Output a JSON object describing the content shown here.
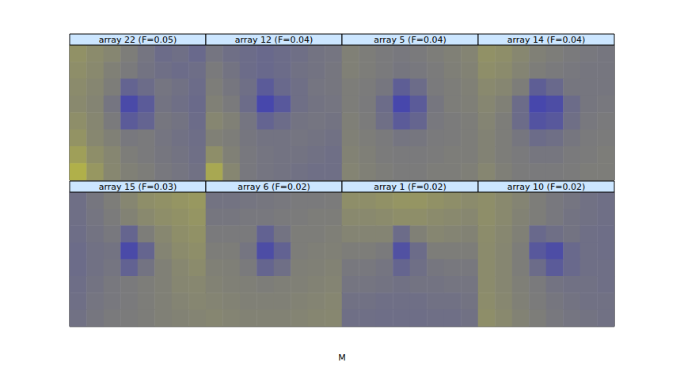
{
  "chart_data": {
    "type": "heatmap",
    "xlabel": "M",
    "tick_labels": false,
    "color_range": [
      0,
      1
    ],
    "colors": [
      "#2828c8",
      "#d2d22a"
    ],
    "panels": [
      {
        "title": "array 22 (F=0.05)",
        "cells": [
          [
            0.62,
            0.58,
            0.55,
            0.5,
            0.45,
            0.4,
            0.42,
            0.38
          ],
          [
            0.6,
            0.57,
            0.52,
            0.48,
            0.44,
            0.42,
            0.4,
            0.41
          ],
          [
            0.58,
            0.55,
            0.5,
            0.35,
            0.4,
            0.45,
            0.43,
            0.4
          ],
          [
            0.57,
            0.54,
            0.45,
            0.2,
            0.3,
            0.44,
            0.42,
            0.39
          ],
          [
            0.6,
            0.55,
            0.48,
            0.3,
            0.35,
            0.46,
            0.44,
            0.4
          ],
          [
            0.63,
            0.56,
            0.52,
            0.47,
            0.48,
            0.45,
            0.43,
            0.41
          ],
          [
            0.7,
            0.6,
            0.55,
            0.5,
            0.48,
            0.46,
            0.44,
            0.42
          ],
          [
            0.8,
            0.65,
            0.56,
            0.52,
            0.5,
            0.47,
            0.45,
            0.43
          ]
        ]
      },
      {
        "title": "array 12 (F=0.04)",
        "cells": [
          [
            0.45,
            0.42,
            0.4,
            0.38,
            0.4,
            0.42,
            0.44,
            0.45
          ],
          [
            0.48,
            0.44,
            0.4,
            0.38,
            0.4,
            0.43,
            0.44,
            0.46
          ],
          [
            0.5,
            0.46,
            0.42,
            0.3,
            0.38,
            0.42,
            0.45,
            0.46
          ],
          [
            0.52,
            0.48,
            0.4,
            0.18,
            0.28,
            0.42,
            0.44,
            0.45
          ],
          [
            0.55,
            0.52,
            0.45,
            0.35,
            0.4,
            0.44,
            0.45,
            0.44
          ],
          [
            0.52,
            0.5,
            0.46,
            0.44,
            0.44,
            0.45,
            0.44,
            0.43
          ],
          [
            0.6,
            0.52,
            0.47,
            0.45,
            0.44,
            0.44,
            0.43,
            0.42
          ],
          [
            0.75,
            0.55,
            0.47,
            0.45,
            0.44,
            0.43,
            0.42,
            0.42
          ]
        ]
      },
      {
        "title": "array 5 (F=0.04)",
        "cells": [
          [
            0.52,
            0.5,
            0.48,
            0.47,
            0.48,
            0.5,
            0.52,
            0.54
          ],
          [
            0.52,
            0.5,
            0.48,
            0.46,
            0.47,
            0.49,
            0.51,
            0.53
          ],
          [
            0.5,
            0.49,
            0.46,
            0.32,
            0.4,
            0.48,
            0.5,
            0.52
          ],
          [
            0.5,
            0.48,
            0.4,
            0.18,
            0.3,
            0.46,
            0.5,
            0.51
          ],
          [
            0.51,
            0.49,
            0.42,
            0.3,
            0.36,
            0.47,
            0.49,
            0.5
          ],
          [
            0.52,
            0.5,
            0.48,
            0.45,
            0.46,
            0.48,
            0.49,
            0.5
          ],
          [
            0.53,
            0.51,
            0.49,
            0.48,
            0.48,
            0.49,
            0.5,
            0.5
          ],
          [
            0.54,
            0.52,
            0.5,
            0.49,
            0.49,
            0.5,
            0.5,
            0.51
          ]
        ]
      },
      {
        "title": "array 14 (F=0.04)",
        "cells": [
          [
            0.62,
            0.6,
            0.56,
            0.52,
            0.5,
            0.48,
            0.47,
            0.46
          ],
          [
            0.6,
            0.58,
            0.54,
            0.5,
            0.48,
            0.47,
            0.46,
            0.46
          ],
          [
            0.57,
            0.55,
            0.5,
            0.32,
            0.38,
            0.46,
            0.46,
            0.46
          ],
          [
            0.55,
            0.52,
            0.4,
            0.18,
            0.22,
            0.4,
            0.46,
            0.47
          ],
          [
            0.54,
            0.5,
            0.4,
            0.25,
            0.28,
            0.42,
            0.47,
            0.48
          ],
          [
            0.53,
            0.5,
            0.46,
            0.4,
            0.42,
            0.46,
            0.48,
            0.49
          ],
          [
            0.53,
            0.5,
            0.48,
            0.46,
            0.46,
            0.48,
            0.49,
            0.5
          ],
          [
            0.55,
            0.51,
            0.49,
            0.48,
            0.48,
            0.49,
            0.5,
            0.5
          ]
        ]
      },
      {
        "title": "array 15 (F=0.03)",
        "cells": [
          [
            0.42,
            0.46,
            0.5,
            0.55,
            0.6,
            0.62,
            0.64,
            0.66
          ],
          [
            0.42,
            0.45,
            0.49,
            0.53,
            0.57,
            0.6,
            0.62,
            0.64
          ],
          [
            0.41,
            0.44,
            0.47,
            0.36,
            0.5,
            0.56,
            0.6,
            0.62
          ],
          [
            0.4,
            0.43,
            0.44,
            0.2,
            0.36,
            0.54,
            0.58,
            0.6
          ],
          [
            0.4,
            0.43,
            0.45,
            0.34,
            0.44,
            0.52,
            0.56,
            0.58
          ],
          [
            0.41,
            0.44,
            0.47,
            0.48,
            0.5,
            0.52,
            0.55,
            0.56
          ],
          [
            0.42,
            0.45,
            0.47,
            0.48,
            0.5,
            0.52,
            0.54,
            0.55
          ],
          [
            0.43,
            0.46,
            0.48,
            0.49,
            0.5,
            0.52,
            0.53,
            0.54
          ]
        ]
      },
      {
        "title": "array 6 (F=0.02)",
        "cells": [
          [
            0.44,
            0.44,
            0.45,
            0.46,
            0.47,
            0.48,
            0.48,
            0.49
          ],
          [
            0.46,
            0.46,
            0.47,
            0.47,
            0.48,
            0.49,
            0.5,
            0.5
          ],
          [
            0.48,
            0.48,
            0.48,
            0.34,
            0.44,
            0.5,
            0.5,
            0.51
          ],
          [
            0.5,
            0.5,
            0.45,
            0.22,
            0.34,
            0.5,
            0.51,
            0.52
          ],
          [
            0.52,
            0.51,
            0.48,
            0.36,
            0.42,
            0.51,
            0.52,
            0.53
          ],
          [
            0.53,
            0.52,
            0.51,
            0.5,
            0.51,
            0.52,
            0.53,
            0.54
          ],
          [
            0.54,
            0.53,
            0.52,
            0.52,
            0.52,
            0.53,
            0.54,
            0.55
          ],
          [
            0.55,
            0.54,
            0.53,
            0.53,
            0.53,
            0.54,
            0.55,
            0.56
          ]
        ]
      },
      {
        "title": "array 1 (F=0.02)",
        "cells": [
          [
            0.6,
            0.6,
            0.62,
            0.64,
            0.64,
            0.62,
            0.6,
            0.58
          ],
          [
            0.57,
            0.57,
            0.58,
            0.6,
            0.6,
            0.58,
            0.57,
            0.56
          ],
          [
            0.54,
            0.54,
            0.54,
            0.4,
            0.52,
            0.55,
            0.54,
            0.53
          ],
          [
            0.5,
            0.5,
            0.48,
            0.24,
            0.4,
            0.5,
            0.5,
            0.5
          ],
          [
            0.47,
            0.47,
            0.45,
            0.36,
            0.42,
            0.46,
            0.47,
            0.47
          ],
          [
            0.45,
            0.45,
            0.44,
            0.43,
            0.44,
            0.44,
            0.45,
            0.45
          ],
          [
            0.43,
            0.43,
            0.42,
            0.42,
            0.42,
            0.43,
            0.43,
            0.44
          ],
          [
            0.42,
            0.42,
            0.41,
            0.41,
            0.41,
            0.42,
            0.42,
            0.43
          ]
        ]
      },
      {
        "title": "array 10 (F=0.02)",
        "cells": [
          [
            0.6,
            0.57,
            0.54,
            0.5,
            0.47,
            0.45,
            0.43,
            0.42
          ],
          [
            0.6,
            0.57,
            0.53,
            0.5,
            0.47,
            0.44,
            0.43,
            0.42
          ],
          [
            0.59,
            0.56,
            0.52,
            0.38,
            0.42,
            0.44,
            0.42,
            0.41
          ],
          [
            0.58,
            0.55,
            0.5,
            0.28,
            0.22,
            0.38,
            0.42,
            0.41
          ],
          [
            0.58,
            0.55,
            0.5,
            0.4,
            0.3,
            0.38,
            0.42,
            0.42
          ],
          [
            0.58,
            0.55,
            0.51,
            0.48,
            0.44,
            0.43,
            0.43,
            0.42
          ],
          [
            0.59,
            0.56,
            0.52,
            0.49,
            0.46,
            0.44,
            0.43,
            0.43
          ],
          [
            0.6,
            0.57,
            0.53,
            0.5,
            0.47,
            0.45,
            0.44,
            0.43
          ]
        ]
      }
    ]
  }
}
